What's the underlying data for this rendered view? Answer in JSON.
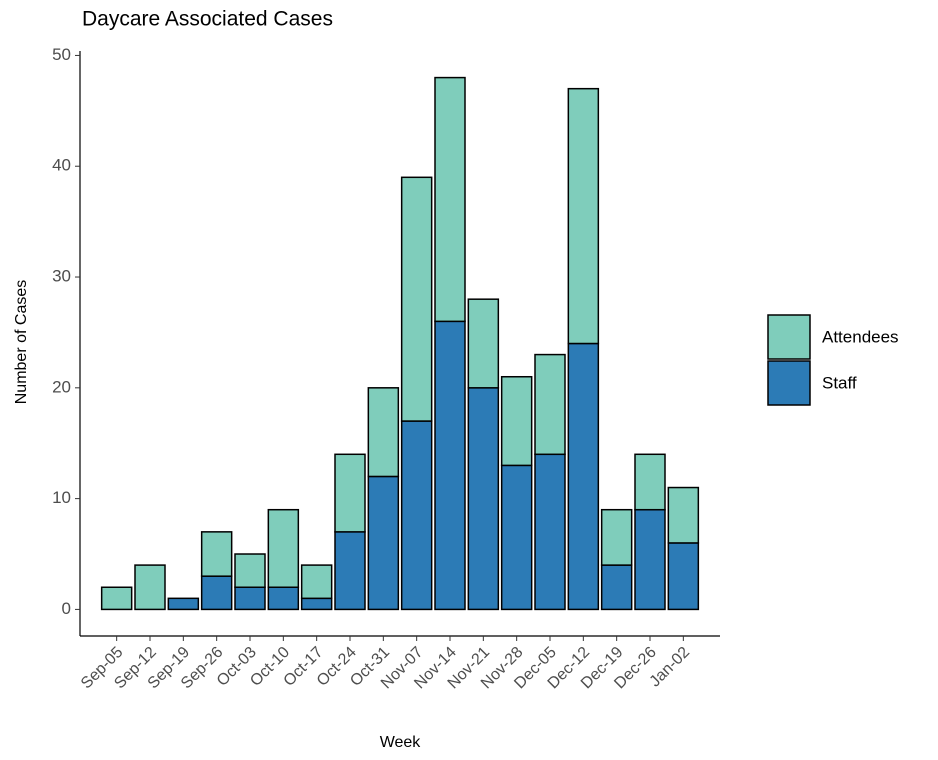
{
  "chart_data": {
    "type": "stacked_bar",
    "title": "Daycare Associated Cases",
    "x_label": "Week",
    "y_label": "Number of Cases",
    "categories": [
      "Sep-05",
      "Sep-12",
      "Sep-19",
      "Sep-26",
      "Oct-03",
      "Oct-10",
      "Oct-17",
      "Oct-24",
      "Oct-31",
      "Nov-07",
      "Nov-14",
      "Nov-21",
      "Nov-28",
      "Dec-05",
      "Dec-12",
      "Dec-19",
      "Dec-26",
      "Jan-02"
    ],
    "series": [
      {
        "name": "Attendees",
        "color": "#7fcdbb",
        "values": [
          2,
          4,
          0,
          4,
          3,
          7,
          3,
          7,
          8,
          22,
          22,
          8,
          8,
          9,
          23,
          5,
          5,
          5
        ]
      },
      {
        "name": "Staff",
        "color": "#2c7bb6",
        "values": [
          0,
          0,
          1,
          3,
          2,
          2,
          1,
          7,
          12,
          17,
          26,
          20,
          13,
          14,
          24,
          4,
          9,
          6
        ]
      }
    ],
    "ylim": [
      -2.4,
      50.4
    ],
    "yticks": [
      0,
      10,
      20,
      30,
      40,
      50
    ],
    "legend": "right"
  }
}
